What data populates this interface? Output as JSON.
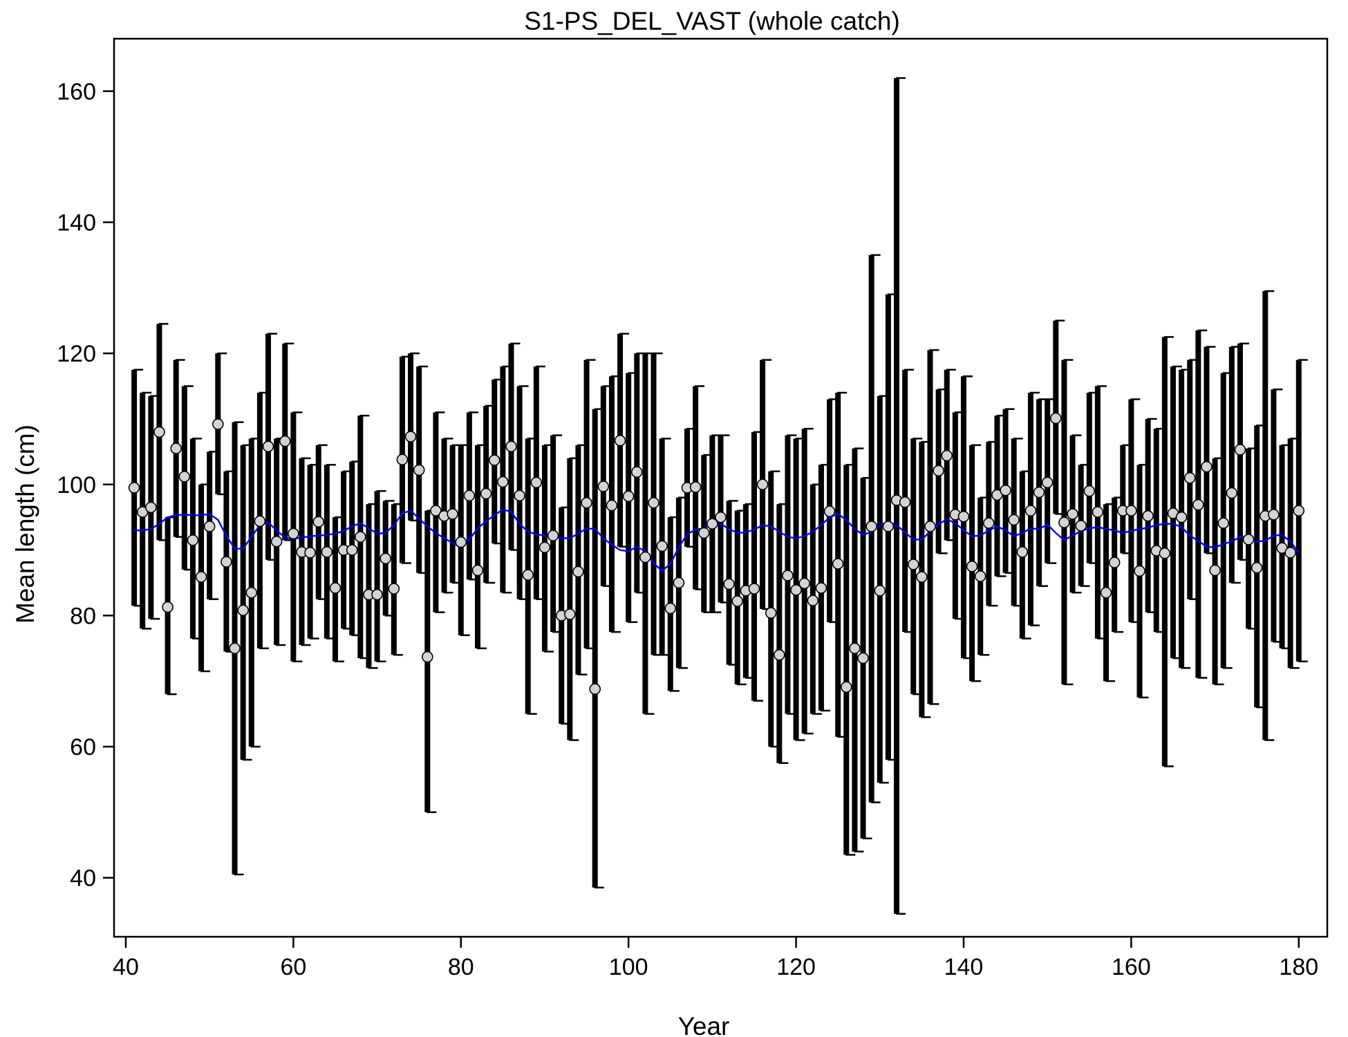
{
  "chart_data": {
    "type": "scatter",
    "title": "S1-PS_DEL_VAST (whole catch)",
    "xlabel": "Year",
    "ylabel": "Mean length (cm)",
    "xlim": [
      38.6,
      183.4
    ],
    "ylim": [
      31,
      168
    ],
    "x_ticks": [
      40,
      60,
      80,
      100,
      120,
      140,
      160,
      180
    ],
    "y_ticks": [
      40,
      60,
      80,
      100,
      120,
      140,
      160
    ],
    "grid": false,
    "colors": {
      "points": "#d3d3d3",
      "error_bars": "#000000",
      "smoother": "#0000ff",
      "frame": "#000000"
    },
    "series": [
      {
        "x": [
          41,
          42,
          43,
          44,
          45,
          46,
          47,
          48,
          49,
          50,
          51,
          52,
          53,
          54,
          55,
          56,
          57,
          58,
          59,
          60,
          61,
          62,
          63,
          64,
          65,
          66,
          67,
          68,
          69,
          70,
          71,
          72,
          73,
          74,
          75,
          76,
          77,
          78,
          79,
          80,
          81,
          82,
          83,
          84,
          85,
          86,
          87,
          88,
          89,
          90,
          91,
          92,
          93,
          94,
          95,
          96,
          97,
          98,
          99,
          100,
          101,
          102,
          103,
          104,
          105,
          106,
          107,
          108,
          109,
          110,
          111,
          112,
          113,
          114,
          115,
          116,
          117,
          118,
          119,
          120,
          121,
          122,
          123,
          124,
          125,
          126,
          127,
          128,
          129,
          130,
          131,
          132,
          133,
          134,
          135,
          136,
          137,
          138,
          139,
          140,
          141,
          142,
          143,
          144,
          145,
          146,
          147,
          148,
          149,
          150,
          151,
          152,
          153,
          154,
          155,
          156,
          157,
          158,
          159,
          160,
          161,
          162,
          163,
          164,
          165,
          166,
          167,
          168,
          169,
          170,
          171,
          172,
          173,
          174,
          175,
          176,
          177,
          178,
          179,
          180
        ],
        "values": [
          99.5,
          95.8,
          96.5,
          108,
          81.3,
          105.5,
          101.2,
          91.5,
          85.9,
          93.6,
          109.2,
          88.2,
          75,
          80.8,
          83.5,
          94.4,
          105.8,
          91.3,
          106.6,
          92.5,
          89.7,
          89.6,
          94.3,
          89.7,
          84.2,
          90,
          90,
          92,
          83.2,
          83.2,
          88.7,
          84.1,
          103.8,
          107.3,
          102.2,
          73.7,
          96,
          95.2,
          95.5,
          91.2,
          98.3,
          86.9,
          98.6,
          103.7,
          100.4,
          105.8,
          98.3,
          86.2,
          100.3,
          90.4,
          92.2,
          80,
          80.2,
          86.7,
          97.2,
          68.8,
          99.7,
          96.8,
          106.7,
          98.2,
          101.9,
          88.9,
          97.2,
          90.6,
          81.1,
          85,
          99.5,
          99.6,
          92.6,
          94,
          95,
          84.8,
          82.2,
          83.8,
          84.1,
          100,
          80.4,
          74,
          86.1,
          83.9,
          84.9,
          82.3,
          84.2,
          95.9,
          87.9,
          69.1,
          75,
          73.5,
          93.6,
          83.8,
          93.6,
          97.6,
          97.3,
          87.8,
          85.9,
          93.6,
          102.1,
          104.4,
          95.4,
          95.1,
          87.5,
          86,
          94.1,
          98.4,
          99.1,
          94.6,
          89.7,
          96,
          98.8,
          100.3,
          110.1,
          94.2,
          95.5,
          93.7,
          99,
          95.8,
          83.5,
          88.1,
          96,
          96,
          86.8,
          95.2,
          89.9,
          89.5,
          95.6,
          95,
          101,
          96.9,
          102.7,
          86.9,
          94.1,
          98.7,
          105.3,
          91.6,
          87.3,
          95.2,
          95.4,
          90.3,
          89.6,
          96
        ]
      }
    ],
    "error_bars": {
      "upper": [
        117.5,
        114,
        113.5,
        124.5,
        95,
        119,
        115,
        107,
        100,
        105,
        120,
        102,
        109.5,
        106,
        107,
        114,
        123,
        107,
        121.5,
        111,
        104,
        103,
        106,
        103,
        95,
        102,
        103.5,
        110.5,
        97,
        99,
        97.5,
        97,
        119.5,
        120,
        118,
        96,
        111,
        107,
        106,
        106,
        111,
        106,
        112,
        116,
        118,
        121.5,
        115,
        107,
        118,
        106,
        107.5,
        96.5,
        104,
        106,
        119,
        111.5,
        115,
        116.5,
        123,
        117,
        120,
        120,
        120,
        107,
        95,
        98,
        108.5,
        115,
        104.5,
        107.5,
        107.5,
        97.5,
        96,
        97,
        108,
        119,
        102,
        97,
        107.5,
        107,
        108.5,
        100,
        103,
        113,
        114,
        103,
        105.5,
        101,
        135,
        113.5,
        129,
        162,
        117.5,
        107,
        106.5,
        120.5,
        114.5,
        117.5,
        111,
        116.5,
        106,
        98,
        106.5,
        110.5,
        111.5,
        107,
        102,
        114,
        113,
        113,
        125,
        119,
        107.5,
        103,
        114,
        115,
        97,
        98,
        106,
        113,
        103,
        110,
        108.5,
        122.5,
        118,
        117.5,
        119,
        123.5,
        121,
        104,
        117,
        121,
        121.5,
        105.5,
        109,
        129.5,
        114.5,
        106,
        107,
        119
      ],
      "lower": [
        81.5,
        78,
        79.5,
        91.5,
        68,
        92,
        87,
        76.5,
        71.5,
        82.5,
        98.5,
        74.5,
        40.5,
        58,
        60,
        75,
        88.5,
        75.5,
        91.5,
        73,
        75.5,
        76.5,
        82.5,
        76.5,
        73,
        78,
        77,
        73.5,
        72,
        73,
        80,
        74,
        88,
        94.5,
        86.5,
        50,
        80.5,
        83.5,
        85,
        77,
        85.5,
        75,
        85,
        91,
        83.5,
        90,
        82.5,
        65,
        82.5,
        74.5,
        77.5,
        63.5,
        61,
        71,
        75,
        38.5,
        84.5,
        77.5,
        90.5,
        79,
        83.5,
        65,
        74,
        74,
        68.5,
        72,
        90.5,
        84,
        80.5,
        80.5,
        82,
        72.5,
        69.5,
        70.5,
        67,
        81,
        60,
        57.5,
        65,
        61,
        62,
        65,
        65.5,
        79,
        61.5,
        43.5,
        44,
        46,
        51.5,
        54.5,
        58,
        34.5,
        77.5,
        68,
        64.5,
        66.5,
        89.5,
        91.5,
        79.5,
        73.5,
        70,
        74,
        81.5,
        86,
        86.5,
        81.5,
        76.5,
        78.5,
        84.5,
        88,
        95.5,
        69.5,
        83.5,
        84.5,
        88,
        76.5,
        70,
        77.5,
        89.5,
        79,
        67.5,
        80.5,
        77.5,
        57,
        73.5,
        72,
        82.5,
        70.5,
        89.5,
        69.5,
        72,
        85,
        88.5,
        78,
        66,
        61,
        76,
        75,
        72,
        73
      ]
    },
    "smoother": {
      "x": [
        41,
        42,
        43,
        44,
        45,
        46,
        47,
        48,
        49,
        50,
        51,
        52,
        53,
        54,
        55,
        56,
        57,
        58,
        59,
        60,
        61,
        62,
        63,
        64,
        65,
        66,
        67,
        68,
        69,
        70,
        71,
        72,
        73,
        74,
        75,
        76,
        77,
        78,
        79,
        80,
        81,
        82,
        83,
        84,
        85,
        86,
        87,
        88,
        89,
        90,
        91,
        92,
        93,
        94,
        95,
        96,
        97,
        98,
        99,
        100,
        101,
        102,
        103,
        104,
        105,
        106,
        107,
        108,
        109,
        110,
        111,
        112,
        113,
        114,
        115,
        116,
        117,
        118,
        119,
        120,
        121,
        122,
        123,
        124,
        125,
        126,
        127,
        128,
        129,
        130,
        131,
        132,
        133,
        134,
        135,
        136,
        137,
        138,
        139,
        140,
        141,
        142,
        143,
        144,
        145,
        146,
        147,
        148,
        149,
        150,
        151,
        152,
        153,
        154,
        155,
        156,
        157,
        158,
        159,
        160,
        161,
        162,
        163,
        164,
        165,
        166,
        167,
        168,
        169,
        170,
        171,
        172,
        173,
        174,
        175,
        176,
        177,
        178,
        179,
        180
      ],
      "values": [
        93,
        93,
        93.2,
        94,
        95,
        95.3,
        95.4,
        95.3,
        95.3,
        95.5,
        94.6,
        92.2,
        90.2,
        90.2,
        92,
        93.8,
        94.2,
        93,
        91.9,
        91.7,
        91.9,
        92.1,
        92.2,
        92.3,
        92.5,
        92.9,
        93.6,
        94.1,
        93.3,
        92.5,
        92.6,
        93.8,
        95.6,
        96,
        94.8,
        93.6,
        92.6,
        91.8,
        91.1,
        90.4,
        91.6,
        93.3,
        94.4,
        95.3,
        96.2,
        95.8,
        94,
        92.8,
        92.4,
        92.2,
        92.2,
        91.8,
        91.8,
        92.5,
        93.3,
        93.2,
        91.8,
        90.8,
        90,
        89.8,
        90.5,
        89.8,
        88,
        86.8,
        87.9,
        90.4,
        92.4,
        93.1,
        93.3,
        93.8,
        94,
        93.2,
        92.6,
        92.7,
        93.1,
        93.8,
        93.6,
        92.8,
        92,
        91.8,
        92.1,
        92.8,
        93.8,
        95,
        95.5,
        94.6,
        93.2,
        92.3,
        92.8,
        93.8,
        94.3,
        93.8,
        92.7,
        91.6,
        91.6,
        92.8,
        93.9,
        94.7,
        94.1,
        93,
        92.1,
        92.2,
        93,
        93.6,
        93,
        92.1,
        92.6,
        93.3,
        93.2,
        93.9,
        92.6,
        91.5,
        92.2,
        92.9,
        93.3,
        93.5,
        93.2,
        93,
        92.6,
        92.9,
        93.2,
        93.4,
        93.8,
        94,
        94,
        93.5,
        92.2,
        91.4,
        90.5,
        90.4,
        90.9,
        91.3,
        92,
        92,
        91.3,
        91.4,
        92.2,
        92.3,
        91.3,
        89.6
      ]
    }
  }
}
